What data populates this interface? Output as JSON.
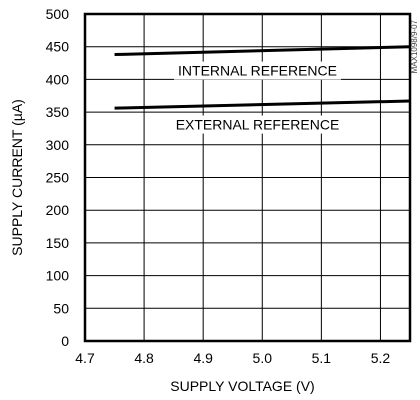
{
  "chart_data": {
    "type": "line",
    "title": "",
    "xlabel": "SUPPLY VOLTAGE (V)",
    "ylabel": "SUPPLY CURRENT (µA)",
    "xlim": [
      4.7,
      5.25
    ],
    "ylim": [
      0,
      500
    ],
    "xticks": [
      4.7,
      4.8,
      4.9,
      5.0,
      5.1,
      5.2
    ],
    "xtick_labels": [
      "4.7",
      "4.8",
      "4.9",
      "5.0",
      "5.1",
      "5.2"
    ],
    "yticks": [
      0,
      50,
      100,
      150,
      200,
      250,
      300,
      350,
      400,
      450,
      500
    ],
    "ytick_labels": [
      "0",
      "50",
      "100",
      "150",
      "200",
      "250",
      "300",
      "350",
      "400",
      "450",
      "500"
    ],
    "grid": true,
    "series": [
      {
        "name": "INTERNAL REFERENCE",
        "x": [
          4.75,
          5.25
        ],
        "y": [
          438,
          450
        ]
      },
      {
        "name": "EXTERNAL REFERENCE",
        "x": [
          4.75,
          5.25
        ],
        "y": [
          356,
          367
        ]
      }
    ],
    "watermark": "MAX1098/9-07"
  },
  "colors": {
    "line": "#000000",
    "grid": "#000000",
    "background": "#ffffff"
  }
}
